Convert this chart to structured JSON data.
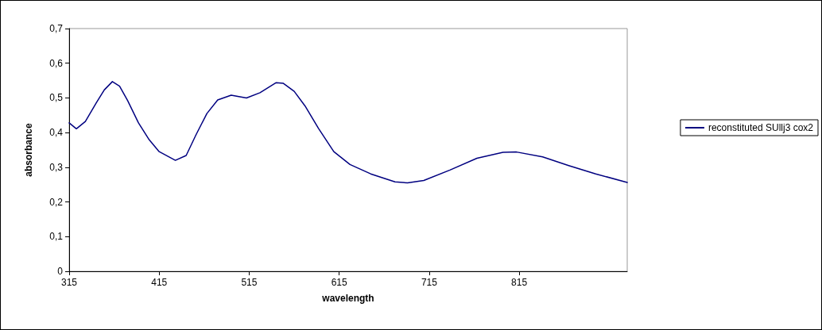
{
  "chart_data": {
    "type": "line",
    "xlabel": "wavelength",
    "ylabel": "absorbance",
    "xlim": [
      315,
      935
    ],
    "xticks": [
      315,
      415,
      515,
      615,
      715,
      815
    ],
    "ylim": [
      0,
      0.7
    ],
    "yticks": [
      0,
      {
        "value": 0.1,
        "label": "0,1"
      },
      {
        "value": 0.2,
        "label": "0,2"
      },
      {
        "value": 0.3,
        "label": "0,3"
      },
      {
        "value": 0.4,
        "label": "0,4"
      },
      {
        "value": 0.5,
        "label": "0,5"
      },
      {
        "value": 0.6,
        "label": "0,6"
      },
      {
        "value": 0.7,
        "label": "0,7"
      }
    ],
    "grid": false,
    "legend": "right",
    "marker": "none",
    "line_style": "solid",
    "series": [
      {
        "name": "reconstituted SUllj3 cox2",
        "color": "#000080",
        "x": [
          315,
          323,
          333,
          345,
          354,
          363,
          371,
          380,
          392,
          404,
          415,
          433,
          445,
          456,
          468,
          480,
          495,
          512,
          527,
          545,
          553,
          565,
          577,
          592,
          609,
          627,
          650,
          677,
          691,
          709,
          738,
          768,
          797,
          812,
          841,
          870,
          900,
          935
        ],
        "values": [
          0.428,
          0.411,
          0.432,
          0.485,
          0.523,
          0.547,
          0.534,
          0.492,
          0.428,
          0.379,
          0.345,
          0.32,
          0.334,
          0.394,
          0.455,
          0.494,
          0.508,
          0.5,
          0.515,
          0.544,
          0.542,
          0.519,
          0.477,
          0.412,
          0.345,
          0.308,
          0.281,
          0.258,
          0.255,
          0.262,
          0.292,
          0.326,
          0.343,
          0.344,
          0.33,
          0.305,
          0.281,
          0.256
        ]
      }
    ]
  }
}
